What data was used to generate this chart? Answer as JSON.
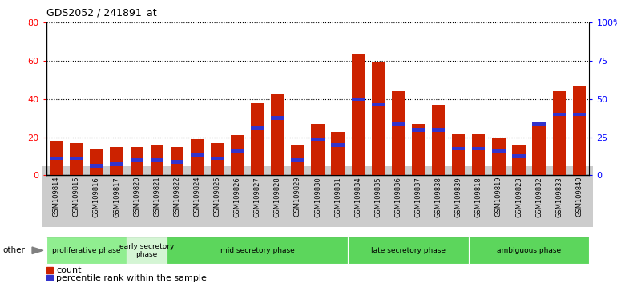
{
  "title": "GDS2052 / 241891_at",
  "samples": [
    "GSM109814",
    "GSM109815",
    "GSM109816",
    "GSM109817",
    "GSM109820",
    "GSM109821",
    "GSM109822",
    "GSM109824",
    "GSM109825",
    "GSM109826",
    "GSM109827",
    "GSM109828",
    "GSM109829",
    "GSM109830",
    "GSM109831",
    "GSM109834",
    "GSM109835",
    "GSM109836",
    "GSM109837",
    "GSM109838",
    "GSM109839",
    "GSM109818",
    "GSM109819",
    "GSM109823",
    "GSM109832",
    "GSM109833",
    "GSM109840"
  ],
  "count_values": [
    18,
    17,
    14,
    15,
    15,
    16,
    15,
    19,
    17,
    21,
    38,
    43,
    16,
    27,
    23,
    64,
    59,
    44,
    27,
    37,
    22,
    22,
    20,
    16,
    28,
    44,
    47
  ],
  "percentile_values": [
    9,
    9,
    5,
    6,
    8,
    8,
    7,
    11,
    9,
    13,
    25,
    30,
    8,
    19,
    16,
    40,
    37,
    27,
    24,
    24,
    14,
    14,
    13,
    10,
    27,
    32,
    32
  ],
  "phases": [
    {
      "label": "proliferative phase",
      "start": 0,
      "end": 4,
      "color": "#90EE90"
    },
    {
      "label": "early secretory\nphase",
      "start": 4,
      "end": 6,
      "color": "#d4f5d4"
    },
    {
      "label": "mid secretory phase",
      "start": 6,
      "end": 15,
      "color": "#5cd65c"
    },
    {
      "label": "late secretory phase",
      "start": 15,
      "end": 21,
      "color": "#5cd65c"
    },
    {
      "label": "ambiguous phase",
      "start": 21,
      "end": 27,
      "color": "#5cd65c"
    }
  ],
  "bar_color": "#cc2200",
  "percentile_color": "#3333cc",
  "ylim_left": [
    0,
    80
  ],
  "ylim_right": [
    0,
    100
  ],
  "yticks_left": [
    0,
    20,
    40,
    60,
    80
  ],
  "ytick_labels_right": [
    "0",
    "25",
    "50",
    "75",
    "100%"
  ],
  "bar_width": 0.65,
  "bg_color": "#ffffff",
  "plot_bg_color": "#ffffff",
  "tick_bg_color": "#cccccc"
}
